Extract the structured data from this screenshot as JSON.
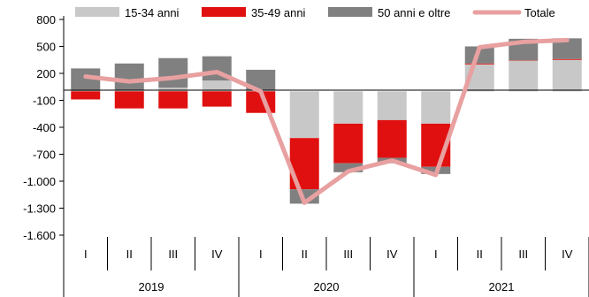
{
  "chart_data": {
    "type": "bar",
    "subtype": "stacked-bar-with-line",
    "title": "",
    "xlabel": "",
    "ylabel": "",
    "ylim": [
      -1600,
      800
    ],
    "yticks": [
      800,
      500,
      200,
      -100,
      -400,
      -700,
      -1000,
      -1300,
      -1600
    ],
    "ytick_labels": [
      "800",
      "500",
      "200",
      "-100",
      "-400",
      "-700",
      "-1.000",
      "-1.300",
      "-1.600"
    ],
    "grid": false,
    "legend_position": "top",
    "quarters": [
      "I",
      "II",
      "III",
      "IV",
      "I",
      "II",
      "III",
      "IV",
      "I",
      "II",
      "III",
      "IV"
    ],
    "years": [
      {
        "label": "2019",
        "span": 4
      },
      {
        "label": "2020",
        "span": 4
      },
      {
        "label": "2021",
        "span": 4
      }
    ],
    "series": [
      {
        "name": "15-34 anni",
        "kind": "bar",
        "color": "#c8c8c8",
        "values": [
          5,
          10,
          40,
          120,
          10,
          -520,
          -360,
          -320,
          -360,
          300,
          340,
          350
        ]
      },
      {
        "name": "35-49 anni",
        "kind": "bar",
        "color": "#e01010",
        "values": [
          -90,
          -190,
          -190,
          -170,
          -240,
          -570,
          -440,
          -420,
          -480,
          10,
          5,
          10
        ]
      },
      {
        "name": "50 anni e oltre",
        "kind": "bar",
        "color": "#808080",
        "values": [
          250,
          300,
          330,
          270,
          230,
          -160,
          -100,
          -60,
          -80,
          190,
          240,
          230
        ]
      },
      {
        "name": "Totale",
        "kind": "line",
        "color": "#e8a0a0",
        "values": [
          165,
          110,
          150,
          215,
          0,
          -1240,
          -890,
          -770,
          -930,
          490,
          550,
          570
        ]
      }
    ]
  }
}
